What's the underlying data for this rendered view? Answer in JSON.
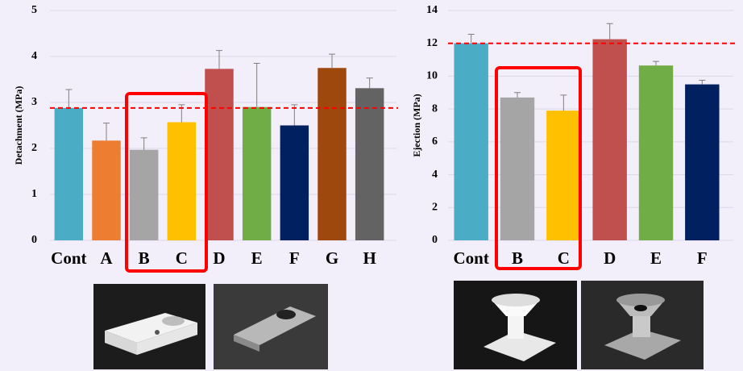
{
  "chart_data": [
    {
      "type": "bar",
      "y_label": "Detachment (MPa)",
      "categories": [
        "Cont",
        "A",
        "B",
        "C",
        "D",
        "E",
        "F",
        "G",
        "H"
      ],
      "values": [
        2.88,
        2.17,
        1.97,
        2.57,
        3.73,
        2.9,
        2.5,
        3.75,
        3.31
      ],
      "errors": [
        0.4,
        0.38,
        0.26,
        0.38,
        0.4,
        0.95,
        0.45,
        0.3,
        0.22
      ],
      "colors": [
        "#4bacc6",
        "#ed7d31",
        "#a5a5a5",
        "#ffc000",
        "#c0504d",
        "#70ad47",
        "#002060",
        "#9e480e",
        "#636363"
      ],
      "reference_line": 2.88,
      "reference_color": "#ff0000",
      "ylim": [
        0,
        5
      ],
      "yticks": [
        0,
        1,
        2,
        3,
        4,
        5
      ],
      "grid": true
    },
    {
      "type": "bar",
      "y_label": "Ejection (MPa)",
      "categories": [
        "Cont",
        "B",
        "C",
        "D",
        "E",
        "F"
      ],
      "values": [
        12.0,
        8.7,
        7.9,
        12.25,
        10.65,
        9.5
      ],
      "errors": [
        0.55,
        0.3,
        0.95,
        0.95,
        0.25,
        0.25
      ],
      "colors": [
        "#4bacc6",
        "#a5a5a5",
        "#ffc000",
        "#c0504d",
        "#70ad47",
        "#002060"
      ],
      "reference_line": 12,
      "reference_color": "#ff0000",
      "ylim": [
        0,
        14
      ],
      "yticks": [
        0,
        2,
        4,
        6,
        8,
        10,
        12,
        14
      ],
      "grid": true
    }
  ]
}
